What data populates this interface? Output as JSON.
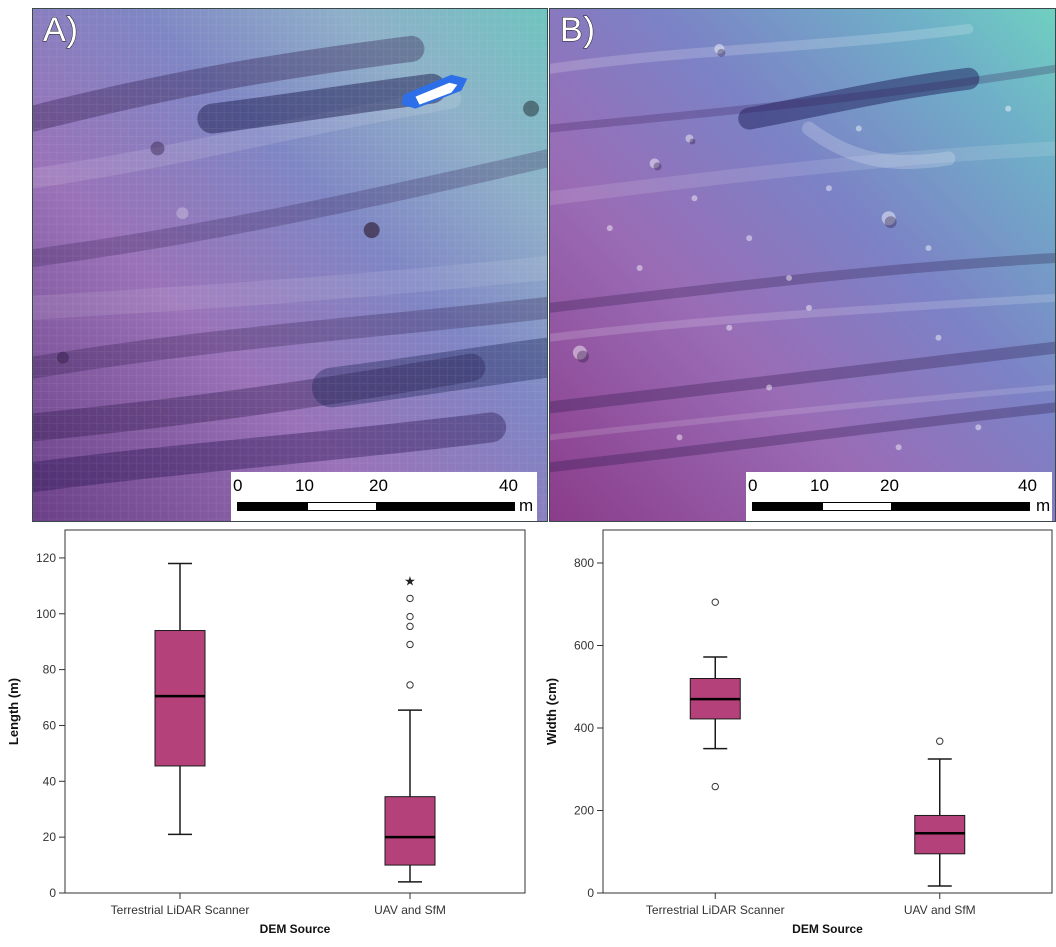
{
  "panels": [
    {
      "label": "A)",
      "scale": {
        "ticks": [
          "0",
          "10",
          "20",
          "40"
        ],
        "unit": "m"
      }
    },
    {
      "label": "B)",
      "scale": {
        "ticks": [
          "0",
          "10",
          "20",
          "40"
        ],
        "unit": "m"
      }
    }
  ],
  "colors": {
    "box_fill": "#b5417a",
    "box_stroke": "#1a1a1a",
    "axis": "#333333"
  },
  "chart_data": [
    {
      "type": "box",
      "xlabel": "DEM Source",
      "ylabel": "Length (m)",
      "categories": [
        "Terrestrial LiDAR Scanner",
        "UAV and SfM"
      ],
      "ylim": [
        0,
        130
      ],
      "yticks": [
        0,
        20,
        40,
        60,
        80,
        100,
        120
      ],
      "boxes": [
        {
          "whisker_low": 21,
          "q1": 45.5,
          "median": 70.5,
          "q3": 94,
          "whisker_high": 118,
          "outliers": [],
          "extremes": []
        },
        {
          "whisker_low": 4,
          "q1": 10,
          "median": 20,
          "q3": 34.5,
          "whisker_high": 65.5,
          "outliers": [
            74.5,
            89,
            95.5,
            99,
            105.5
          ],
          "extremes": [
            112
          ]
        }
      ]
    },
    {
      "type": "box",
      "xlabel": "DEM Source",
      "ylabel": "Width (cm)",
      "categories": [
        "Terrestrial LiDAR Scanner",
        "UAV and SfM"
      ],
      "ylim": [
        0,
        880
      ],
      "yticks": [
        0,
        200,
        400,
        600,
        800
      ],
      "boxes": [
        {
          "whisker_low": 350,
          "q1": 422,
          "median": 470,
          "q3": 520,
          "whisker_high": 572,
          "outliers": [
            258,
            705
          ],
          "extremes": []
        },
        {
          "whisker_low": 17,
          "q1": 95,
          "median": 145,
          "q3": 188,
          "whisker_high": 325,
          "outliers": [
            368
          ],
          "extremes": []
        }
      ]
    }
  ]
}
